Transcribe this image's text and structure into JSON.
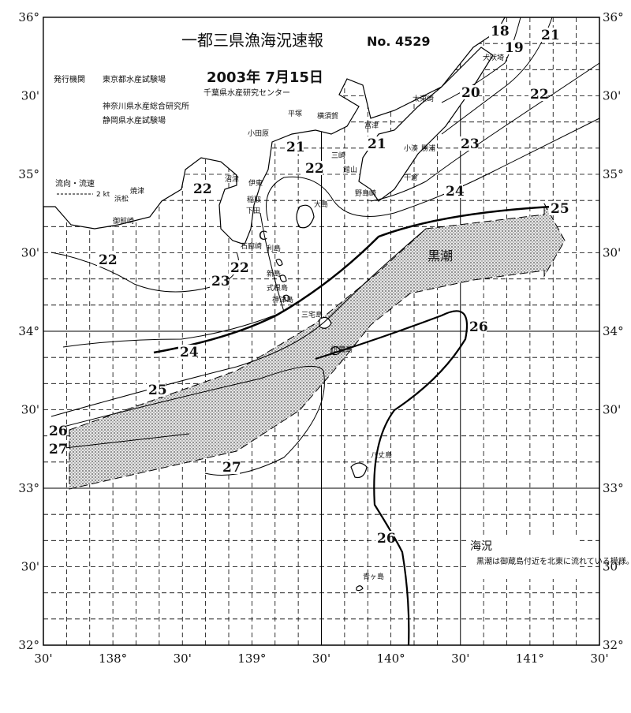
{
  "header": {
    "title": "一都三県漁海況速報",
    "number": "No. 4529",
    "date": "2003年 7月15日",
    "issuer_label": "発行機関",
    "issuers": [
      "東京都水産試験場",
      "千葉県水産研究センター",
      "神奈川県水産総合研究所",
      "静岡県水産試験場"
    ]
  },
  "lat_labels": [
    "36°",
    "30'",
    "35°",
    "30'",
    "34°",
    "30'",
    "33°",
    "30'",
    "32°"
  ],
  "lon_labels": [
    "30'",
    "138°",
    "30'",
    "139°",
    "30'",
    "140°",
    "30'",
    "141°",
    "30'"
  ],
  "legend": {
    "title": "流向・流速",
    "speed": "2 kt"
  },
  "current_label": "黒潮",
  "eddy_label": "C",
  "isotherm_labels": [
    "18",
    "19",
    "21",
    "20",
    "22",
    "23",
    "24",
    "25",
    "21",
    "21",
    "22",
    "22",
    "22",
    "22",
    "23",
    "24",
    "25",
    "26",
    "27",
    "26",
    "27",
    "26"
  ],
  "places": [
    "犬吠埼",
    "太東崎",
    "平塚",
    "横須賀",
    "富津",
    "小田原",
    "三崎",
    "館山",
    "小湊",
    "勝浦",
    "千倉",
    "野島崎",
    "沼津",
    "伊東",
    "大島",
    "稲取",
    "下田",
    "石廊崎",
    "焼津",
    "御前崎",
    "浜松",
    "利島",
    "新島",
    "式根島",
    "神津島",
    "三宅島",
    "御蔵島",
    "八丈島",
    "青ヶ島"
  ],
  "note": {
    "title": "海況",
    "text": "黒潮は御蔵島付近を北東に流れている模様。"
  }
}
